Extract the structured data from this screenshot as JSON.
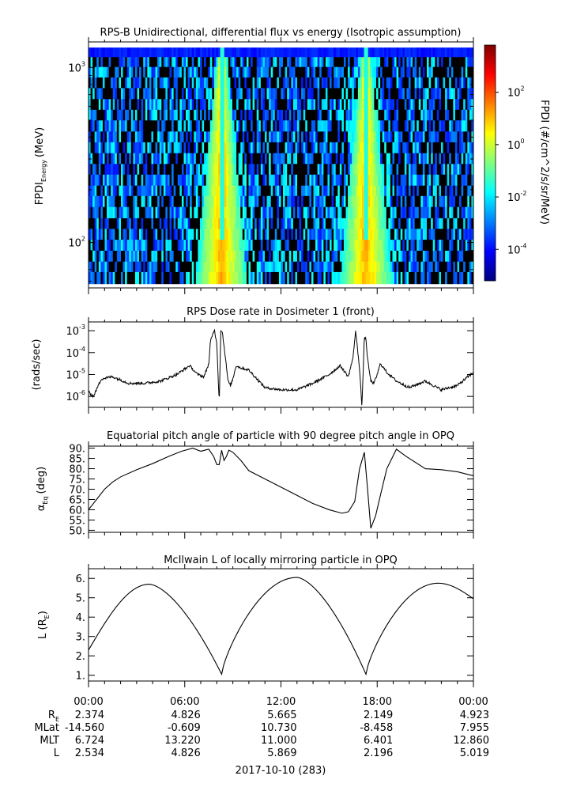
{
  "chart_data": [
    {
      "type": "heatmap",
      "title": "RPS-B  Unidirectional, differential flux vs energy (Isotropic assumption)",
      "ylabel_main": "FPDI",
      "ylabel_sub": "Energy",
      "ylabel_unit": "(MeV)",
      "yscale": "log",
      "ylim": [
        55,
        1400
      ],
      "yticks": [
        {
          "value": 100,
          "base": "10",
          "exp": "2"
        },
        {
          "value": 1000,
          "base": "10",
          "exp": "3"
        }
      ],
      "energy_edges": [
        58,
        68,
        78,
        90,
        104,
        120,
        138,
        160,
        185,
        212,
        245,
        282,
        325,
        375,
        432,
        500,
        575,
        662,
        765,
        880,
        1010,
        1150,
        1300
      ],
      "xlim_hours": [
        0,
        24
      ],
      "band_peaks_hours": [
        8.3,
        17.3
      ],
      "colorbar": {
        "label": "FPDI (#/cm^2/s/sr/MeV)",
        "scale": "log",
        "range_exp": [
          -5.2,
          3.8
        ],
        "ticks": [
          {
            "exp": 2,
            "base": "10",
            "sup": "2"
          },
          {
            "exp": 0,
            "base": "10",
            "sup": "0"
          },
          {
            "exp": -2,
            "base": "10",
            "sup": "-2"
          },
          {
            "exp": -4,
            "base": "10",
            "sup": "-4"
          }
        ],
        "colors": [
          "#00007f",
          "#0000ff",
          "#007fff",
          "#00ffff",
          "#7fff7f",
          "#ffff00",
          "#ff7f00",
          "#ff0000",
          "#7f0000"
        ]
      }
    },
    {
      "type": "line",
      "title": "RPS  Dose rate in Dosimeter 1 (front)",
      "ylabel": "(rads/sec)",
      "yscale": "log",
      "ylim_exp": [
        -6.5,
        -2.6
      ],
      "yticks": [
        {
          "exp": -3,
          "base": "10",
          "sup": "-3"
        },
        {
          "exp": -4,
          "base": "10",
          "sup": "-4"
        },
        {
          "exp": -5,
          "base": "10",
          "sup": "-5"
        },
        {
          "exp": -6,
          "base": "10",
          "sup": "-6"
        }
      ],
      "x_hours": [
        0,
        0.3,
        0.8,
        1.5,
        2.5,
        3.5,
        4.5,
        5.5,
        6.3,
        6.8,
        7.2,
        7.5,
        7.6,
        7.85,
        8.0,
        8.15,
        8.25,
        8.35,
        8.5,
        8.7,
        8.85,
        9.0,
        9.2,
        9.5,
        10.0,
        11.0,
        12.0,
        13.0,
        14.0,
        15.0,
        15.7,
        16.2,
        16.5,
        16.65,
        16.9,
        17.05,
        17.2,
        17.3,
        17.4,
        17.6,
        17.8,
        18.0,
        18.2,
        18.6,
        19.2,
        20.0,
        21.0,
        22.0,
        23.0,
        24.0
      ],
      "y_log10": [
        -5.8,
        -6.0,
        -5.2,
        -5.1,
        -5.4,
        -5.4,
        -5.3,
        -5.0,
        -4.6,
        -5.0,
        -5.1,
        -4.5,
        -3.5,
        -2.95,
        -3.6,
        -6.3,
        -2.95,
        -3.1,
        -4.0,
        -5.3,
        -5.5,
        -5.2,
        -4.6,
        -4.7,
        -4.8,
        -5.6,
        -5.7,
        -5.7,
        -5.4,
        -5.0,
        -4.6,
        -5.1,
        -4.2,
        -3.0,
        -4.7,
        -6.5,
        -3.25,
        -3.4,
        -4.3,
        -5.3,
        -5.4,
        -5.0,
        -4.5,
        -4.9,
        -5.3,
        -5.6,
        -5.3,
        -5.7,
        -5.5,
        -4.9
      ]
    },
    {
      "type": "line",
      "title": "Equatorial pitch angle of particle with 90 degree pitch angle in OPQ",
      "ylabel_main": "α",
      "ylabel_sub": "Eq",
      "ylabel_unit": "(deg)",
      "ylim": [
        49,
        91
      ],
      "yticks": [
        "90.",
        "85.",
        "80.",
        "75.",
        "70.",
        "65.",
        "60.",
        "55.",
        "50."
      ],
      "ytick_values": [
        90,
        85,
        80,
        75,
        70,
        65,
        60,
        55,
        50
      ],
      "x_hours": [
        0,
        0.5,
        1.0,
        1.5,
        2.0,
        3.0,
        4.0,
        5.0,
        5.8,
        6.5,
        7.0,
        7.5,
        7.8,
        8.0,
        8.15,
        8.3,
        8.45,
        8.6,
        8.75,
        9.0,
        9.5,
        10.0,
        11.0,
        12.0,
        13.0,
        14.0,
        15.0,
        15.8,
        16.2,
        16.6,
        16.9,
        17.2,
        17.4,
        17.6,
        17.9,
        18.2,
        18.6,
        19.2,
        19.8,
        21.0,
        22.0,
        23.0,
        24.0
      ],
      "y": [
        60,
        65,
        70,
        73.5,
        76,
        79.5,
        82.5,
        86,
        88.5,
        90,
        88.5,
        89.5,
        86,
        82,
        82,
        89,
        84,
        86,
        89,
        88,
        84,
        79,
        75,
        71,
        67,
        63,
        60,
        58.3,
        59,
        64,
        80,
        88,
        70,
        51,
        57,
        67,
        80,
        89.5,
        86,
        80,
        79.5,
        78.5,
        76.5
      ]
    },
    {
      "type": "line",
      "title": "McIlwain L of locally mirroring particle in OPQ",
      "ylabel_main": "L (R",
      "ylabel_sub": "E",
      "ylabel_unit": ")",
      "ylim": [
        0.7,
        6.5
      ],
      "yticks": [
        "6.",
        "5.",
        "4.",
        "3.",
        "2.",
        "1."
      ],
      "ytick_values": [
        6,
        5,
        4,
        3,
        2,
        1
      ],
      "curve_minima_hours": [
        8.3,
        17.3
      ],
      "curve_minima_L": [
        1.05,
        1.05
      ],
      "curve_maxima_hours": [
        3.8,
        13.0,
        21.8
      ],
      "curve_maxima_L": [
        5.7,
        6.05,
        5.75
      ],
      "start_L": 2.3,
      "end_L": 4.95
    }
  ],
  "x_axis": {
    "tick_labels": [
      "00:00",
      "06:00",
      "12:00",
      "18:00",
      "00:00"
    ],
    "tick_hours": [
      0,
      6,
      12,
      18,
      24
    ]
  },
  "ephemeris": {
    "rows": [
      {
        "label": "R",
        "label_sub": "E",
        "values": [
          "2.374",
          "4.826",
          "5.665",
          "2.149",
          "4.923"
        ]
      },
      {
        "label": "MLat",
        "label_sub": "",
        "values": [
          "-14.560",
          "-0.609",
          "10.730",
          "-8.458",
          "7.955"
        ]
      },
      {
        "label": "MLT",
        "label_sub": "",
        "values": [
          "6.724",
          "13.220",
          "11.000",
          "6.401",
          "12.860"
        ]
      },
      {
        "label": "L",
        "label_sub": "",
        "values": [
          "2.534",
          "4.826",
          "5.869",
          "2.196",
          "5.019"
        ]
      }
    ]
  },
  "date_label": "2017-10-10 (283)"
}
